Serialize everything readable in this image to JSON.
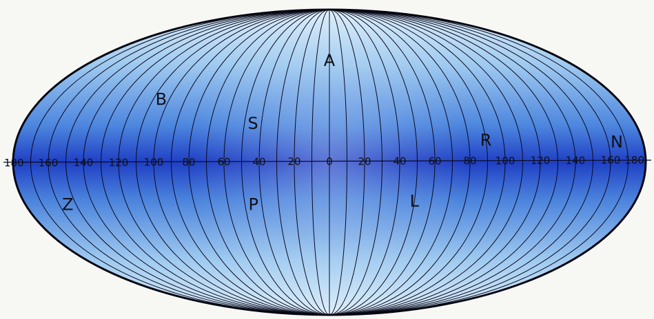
{
  "map": {
    "projection": "equal-area ellipse (meridian grid)",
    "meridian_interval_degrees": 10,
    "colors": {
      "equator_band": "#1f3fc4",
      "pole": "#dff0fb",
      "grid_line": "#0a0a1e",
      "outline": "#050510"
    },
    "region_labels": [
      {
        "text": "A",
        "lon": 0,
        "lat": 60
      },
      {
        "text": "B",
        "lon": -105,
        "lat": 37
      },
      {
        "text": "S",
        "lon": -45,
        "lat": 23
      },
      {
        "text": "R",
        "lon": 90,
        "lat": 13
      },
      {
        "text": "N",
        "lon": 165,
        "lat": 12
      },
      {
        "text": "Z",
        "lon": -155,
        "lat": -25
      },
      {
        "text": "P",
        "lon": -45,
        "lat": -25
      },
      {
        "text": "L",
        "lon": 50,
        "lat": -23
      }
    ],
    "longitude_ticks": [
      {
        "text": "180",
        "lon": -180
      },
      {
        "text": "160",
        "lon": -160
      },
      {
        "text": "140",
        "lon": -140
      },
      {
        "text": "120",
        "lon": -120
      },
      {
        "text": "100",
        "lon": -100
      },
      {
        "text": "80",
        "lon": -80
      },
      {
        "text": "60",
        "lon": -60
      },
      {
        "text": "40",
        "lon": -40
      },
      {
        "text": "20",
        "lon": -20
      },
      {
        "text": "0",
        "lon": 0
      },
      {
        "text": "20",
        "lon": 20
      },
      {
        "text": "40",
        "lon": 40
      },
      {
        "text": "60",
        "lon": 60
      },
      {
        "text": "80",
        "lon": 80
      },
      {
        "text": "100",
        "lon": 100
      },
      {
        "text": "120",
        "lon": 120
      },
      {
        "text": "140",
        "lon": 140
      },
      {
        "text": "160",
        "lon": 160
      },
      {
        "text": "180",
        "lon": 180
      }
    ]
  }
}
